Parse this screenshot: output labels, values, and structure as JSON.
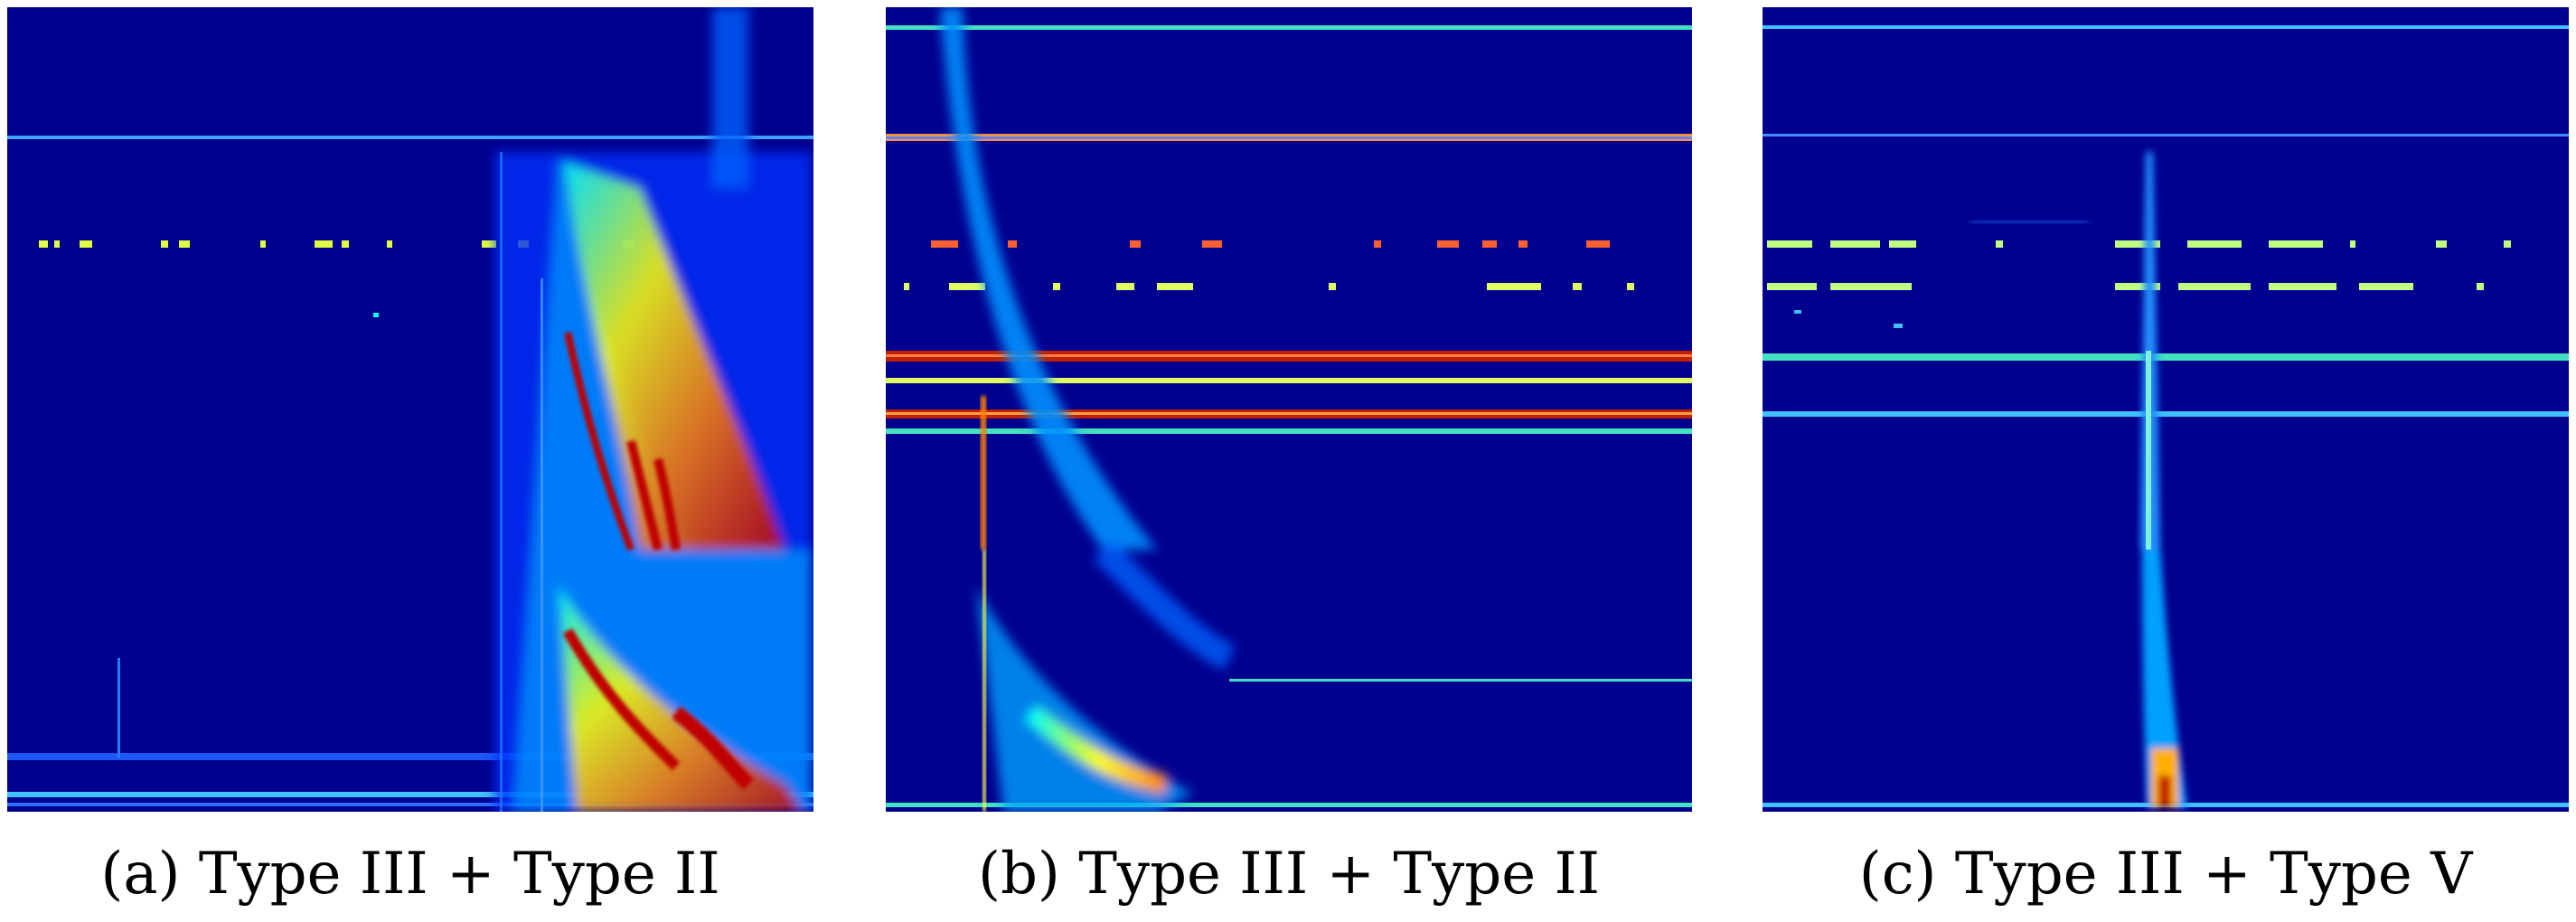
{
  "figure": {
    "panels": [
      {
        "label": "(a)",
        "caption": "(a) Type III + Type II"
      },
      {
        "label": "(b)",
        "caption": "(b) Type III + Type II"
      },
      {
        "label": "(c)",
        "caption": "(c) Type III + Type V"
      }
    ],
    "colormap": {
      "background": "#00008f",
      "low": "#0000ff",
      "cyan": "#00ffff",
      "yellow": "#ffff00",
      "orange": "#ff8000",
      "red": "#c00000"
    }
  }
}
